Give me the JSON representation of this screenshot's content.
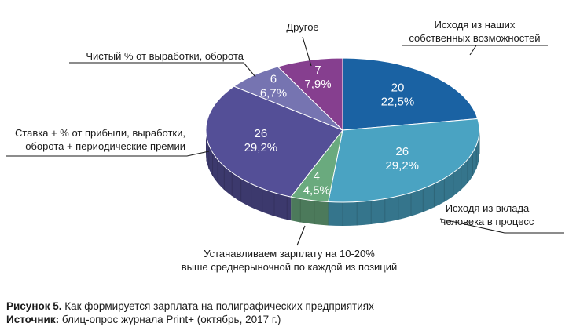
{
  "chart_data": {
    "type": "pie",
    "style": "3d",
    "slices": [
      {
        "label": "Исходя из наших собственных возможностей",
        "label_lines": [
          "Исходя из наших",
          "собственных возможностей"
        ],
        "count": 20,
        "percent": "22,5%",
        "color": "#1a62a3"
      },
      {
        "label": "Исходя из вклада человека в процесс",
        "label_lines": [
          "Исходя из вклада",
          "человека в процесс"
        ],
        "count": 26,
        "percent": "29,2%",
        "color": "#4aa3c2"
      },
      {
        "label": "Устанавливаем зарплату на 10-20% выше среднерыночной по каждой из позиций",
        "label_lines": [
          "Устанавливаем зарплату на 10-20%",
          "выше среднерыночной по каждой из позиций"
        ],
        "count": 4,
        "percent": "4,5%",
        "color": "#6aaa7e"
      },
      {
        "label": "Ставка + % от прибыли, выработки, оборота + периодические премии",
        "label_lines": [
          "Ставка + % от прибыли, выработки,",
          "оборота + периодические премии"
        ],
        "count": 26,
        "percent": "29,2%",
        "color": "#544f97"
      },
      {
        "label": "Чистый % от выработки, оборота",
        "label_lines": [
          "Чистый % от выработки, оборота"
        ],
        "count": 6,
        "percent": "6,7%",
        "color": "#7674b1"
      },
      {
        "label": "Другое",
        "label_lines": [
          "Другое"
        ],
        "count": 7,
        "percent": "7,9%",
        "color": "#863f8f"
      }
    ]
  },
  "caption": {
    "figure_label": "Рисунок 5.",
    "figure_text": " Как формируется зарплата на полиграфических предприятиях",
    "source_label": "Источник:",
    "source_text": " блиц-опрос журнала Print+ (октябрь, 2017 г.)"
  }
}
